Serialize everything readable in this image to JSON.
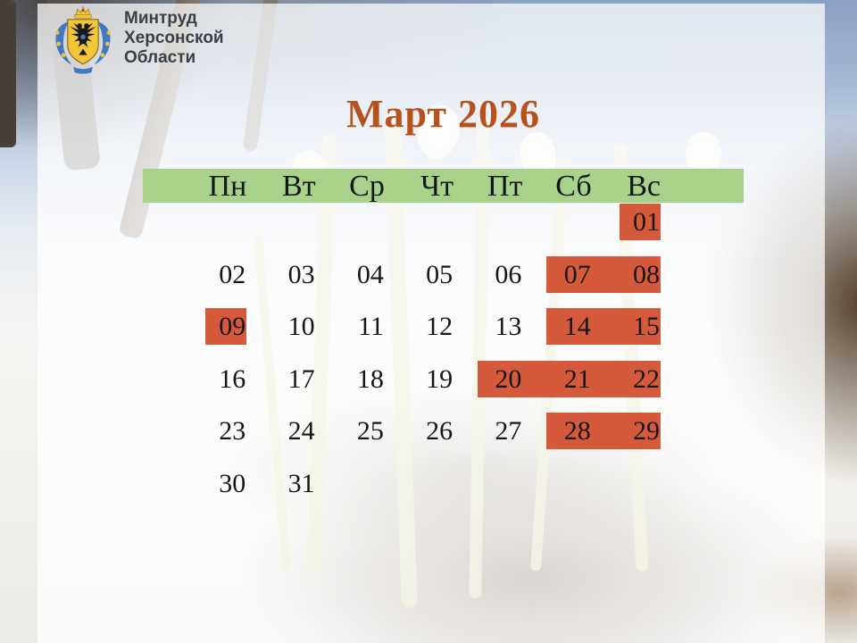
{
  "org": {
    "name_lines": [
      "Минтруд",
      "Херсонской",
      "Области"
    ],
    "emblem": "kherson-oblast-coat-of-arms"
  },
  "title": "Март 2026",
  "calendar": {
    "weekday_headers": [
      "Пн",
      "Вт",
      "Ср",
      "Чт",
      "Пт",
      "Сб",
      "Вс"
    ],
    "weeks": [
      [
        "",
        "",
        "",
        "",
        "",
        "",
        "01"
      ],
      [
        "02",
        "03",
        "04",
        "05",
        "06",
        "07",
        "08"
      ],
      [
        "09",
        "10",
        "11",
        "12",
        "13",
        "14",
        "15"
      ],
      [
        "16",
        "17",
        "18",
        "19",
        "20",
        "21",
        "22"
      ],
      [
        "23",
        "24",
        "25",
        "26",
        "27",
        "28",
        "29"
      ],
      [
        "30",
        "31",
        "",
        "",
        "",
        "",
        ""
      ]
    ],
    "highlighted_days": [
      "01",
      "07",
      "08",
      "09",
      "14",
      "15",
      "20",
      "21",
      "22",
      "28",
      "29"
    ],
    "highlight_runs": [
      {
        "week": 0,
        "start": 6,
        "end": 6
      },
      {
        "week": 1,
        "start": 5,
        "end": 6
      },
      {
        "week": 2,
        "start": 0,
        "end": 0
      },
      {
        "week": 2,
        "start": 5,
        "end": 6
      },
      {
        "week": 3,
        "start": 4,
        "end": 6
      },
      {
        "week": 4,
        "start": 5,
        "end": 6
      }
    ]
  },
  "colors": {
    "title_text": "#b5521e",
    "weekday_bar_green": "#a8d18a",
    "holiday_highlight_orange": "#d55a3c",
    "calendar_text": "#161616",
    "org_text": "#3a4047",
    "emblem_gold": "#f0c437",
    "emblem_blue": "#3f79c4",
    "emblem_red": "#c03a2e"
  }
}
